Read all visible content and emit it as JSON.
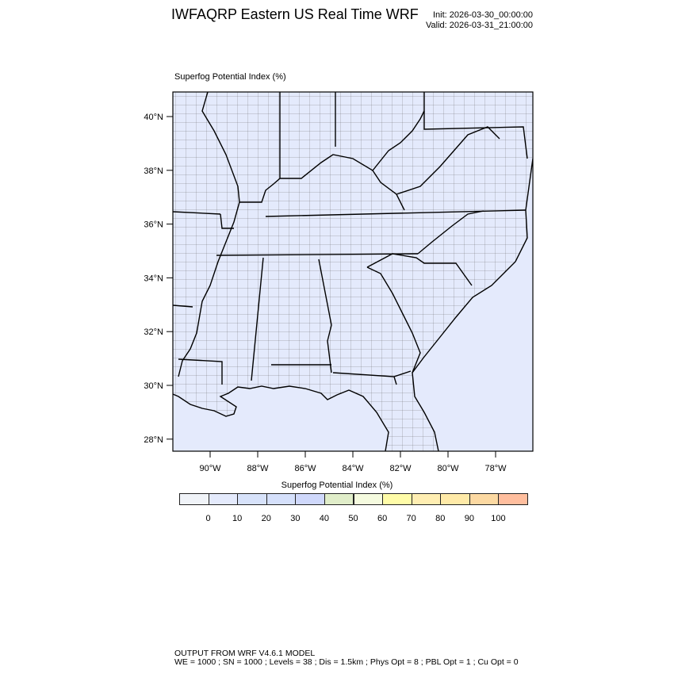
{
  "header": {
    "title": "IWFAQRP Eastern US Real Time WRF",
    "init": "Init: 2026-03-30_00:00:00",
    "valid": "Valid: 2026-03-31_21:00:00"
  },
  "map": {
    "field_label": "Superfog Potential Index   (%)",
    "fill_color": "#e4eafc",
    "lat_ticks": [
      "40°N",
      "38°N",
      "36°N",
      "34°N",
      "32°N",
      "30°N",
      "28°N"
    ],
    "lon_ticks": [
      "90°W",
      "88°W",
      "86°W",
      "84°W",
      "82°W",
      "80°W",
      "78°W"
    ]
  },
  "colorbar": {
    "title": "Superfog Potential Index  (%)",
    "colors": [
      "#f0f3f8",
      "#e4eafc",
      "#d7e2fa",
      "#d5e0fb",
      "#cfd8fb",
      "#e0edc9",
      "#f5fbdf",
      "#fffca8",
      "#ffeeb2",
      "#ffeaa8",
      "#fcd9a2",
      "#ffbe9e"
    ],
    "labels": [
      "0",
      "10",
      "20",
      "30",
      "40",
      "50",
      "60",
      "70",
      "80",
      "90",
      "100"
    ]
  },
  "footer": {
    "line1": "OUTPUT FROM WRF V4.6.1 MODEL",
    "line2": "WE = 1000 ; SN = 1000 ; Levels = 38 ; Dis = 1.5km ; Phys Opt = 8 ; PBL Opt = 1 ; Cu Opt = 0"
  }
}
